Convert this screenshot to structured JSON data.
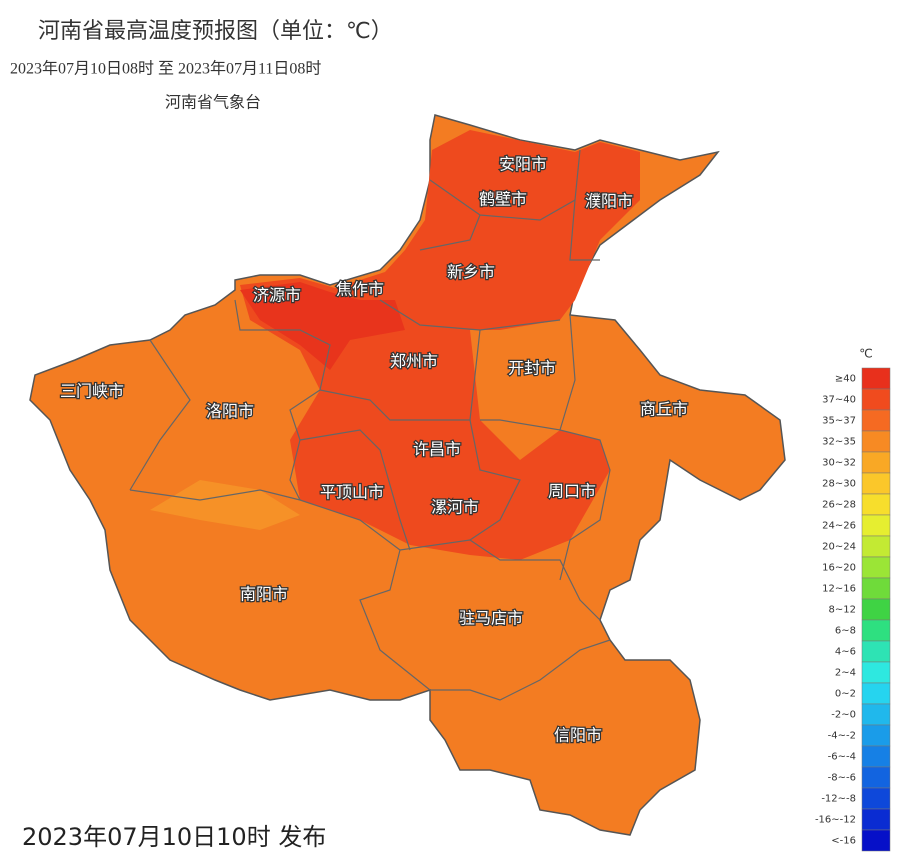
{
  "header": {
    "title": "河南省最高温度预报图（单位：℃）",
    "period": "2023年07月10日08时  至  2023年07月11日08时",
    "agency": "河南省气象台"
  },
  "cities": [
    "安阳市",
    "鹤壁市",
    "濮阳市",
    "新乡市",
    "济源市",
    "焦作市",
    "郑州市",
    "开封市",
    "三门峡市",
    "洛阳市",
    "商丘市",
    "许昌市",
    "平顶山市",
    "周口市",
    "漯河市",
    "南阳市",
    "驻马店市",
    "信阳市"
  ],
  "legend": {
    "unit": "℃",
    "items": [
      {
        "label": "≥40",
        "color": "#e8301c"
      },
      {
        "label": "37~40",
        "color": "#f04b1e"
      },
      {
        "label": "35~37",
        "color": "#f56a22"
      },
      {
        "label": "32~35",
        "color": "#f78a23"
      },
      {
        "label": "30~32",
        "color": "#f9a825"
      },
      {
        "label": "28~30",
        "color": "#fbc72a"
      },
      {
        "label": "26~28",
        "color": "#f7de2c"
      },
      {
        "label": "24~26",
        "color": "#e6ee30"
      },
      {
        "label": "20~24",
        "color": "#c3ea33"
      },
      {
        "label": "16~20",
        "color": "#9be536"
      },
      {
        "label": "12~16",
        "color": "#6fdb3a"
      },
      {
        "label": "8~12",
        "color": "#3fd344"
      },
      {
        "label": "6~8",
        "color": "#2ee080"
      },
      {
        "label": "4~6",
        "color": "#2ee3b4"
      },
      {
        "label": "2~4",
        "color": "#2ee8e0"
      },
      {
        "label": "0~2",
        "color": "#26d4ef"
      },
      {
        "label": "-2~0",
        "color": "#20b8ec"
      },
      {
        "label": "-4~-2",
        "color": "#1a9ce9"
      },
      {
        "label": "-6~-4",
        "color": "#1680e5"
      },
      {
        "label": "-8~-6",
        "color": "#1264e0"
      },
      {
        "label": "-12~-8",
        "color": "#0e48da"
      },
      {
        "label": "-16~-12",
        "color": "#0a2cd2"
      },
      {
        "label": "<-16",
        "color": "#0610c8"
      }
    ]
  },
  "footer": "2023年07月10日10时 发布"
}
